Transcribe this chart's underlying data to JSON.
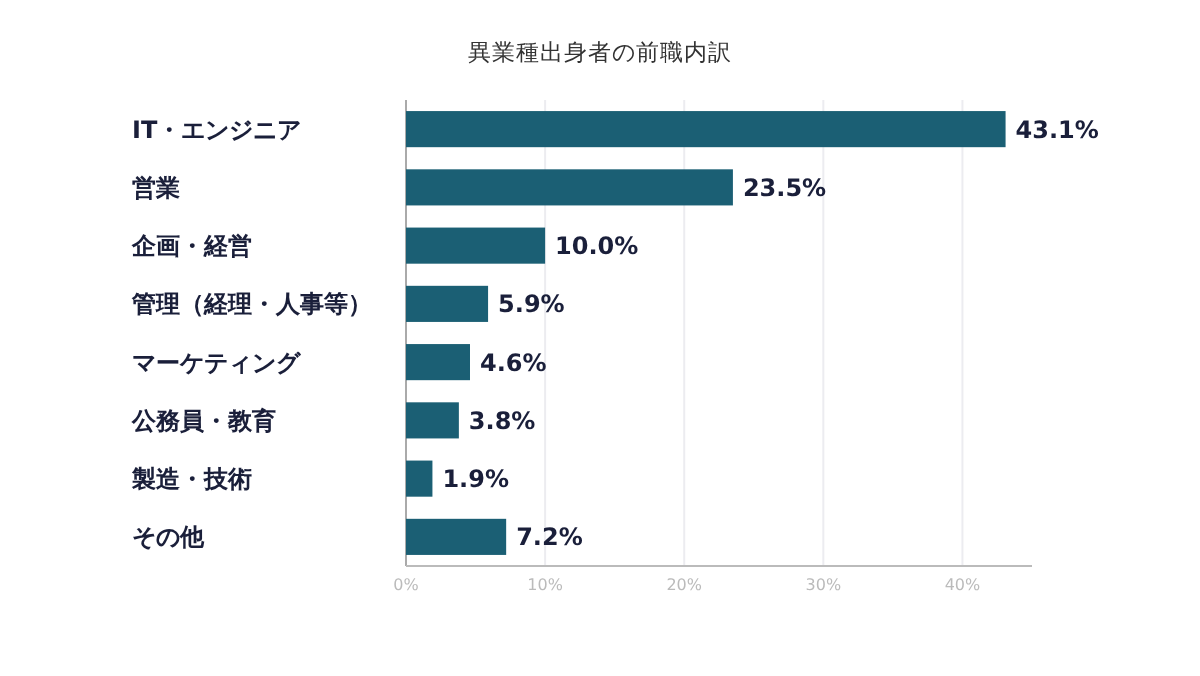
{
  "chart_data": {
    "type": "bar",
    "orientation": "horizontal",
    "title": "異業種出身者の前職内訳",
    "categories": [
      "IT・エンジニア",
      "営業",
      "企画・経営",
      "管理（経理・人事等）",
      "マーケティング",
      "公務員・教育",
      "製造・技術",
      "その他"
    ],
    "values": [
      43.1,
      23.5,
      10.0,
      5.9,
      4.6,
      3.8,
      1.9,
      7.2
    ],
    "value_labels": [
      "43.1%",
      "23.5%",
      "10.0%",
      "5.9%",
      "4.6%",
      "3.8%",
      "1.9%",
      "7.2%"
    ],
    "color": "#1b5f74",
    "xlim": [
      0,
      45
    ],
    "xticks": [
      {
        "value": 0,
        "label": "0%"
      },
      {
        "value": 10,
        "label": "10%"
      },
      {
        "value": 20,
        "label": "20%"
      },
      {
        "value": 30,
        "label": "30%"
      },
      {
        "value": 40,
        "label": "40%"
      }
    ],
    "grid": "x"
  }
}
